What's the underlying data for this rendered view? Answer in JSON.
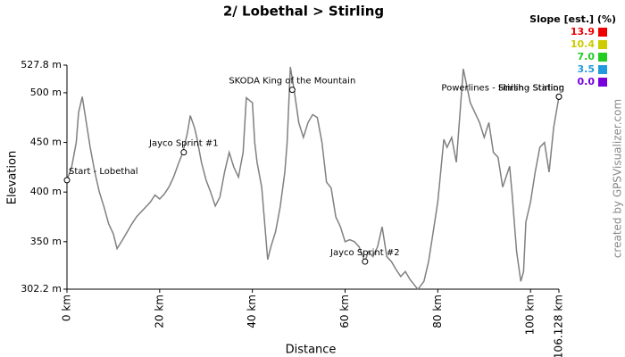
{
  "chart_data": {
    "type": "line",
    "title": "2/ Lobethal > Stirling",
    "x_label": "Distance",
    "y_label": "Elevation",
    "credit": "created by GPSVisualizer.com",
    "xlim": [
      0,
      106.128
    ],
    "ylim": [
      302.2,
      527.8
    ],
    "xticks": [
      {
        "value": 0,
        "label": "0 km"
      },
      {
        "value": 20,
        "label": "20 km"
      },
      {
        "value": 40,
        "label": "40 km"
      },
      {
        "value": 60,
        "label": "60 km"
      },
      {
        "value": 80,
        "label": "80 km"
      },
      {
        "value": 100,
        "label": "100 km"
      },
      {
        "value": 106.128,
        "label": "106.128 km"
      }
    ],
    "yticks": [
      {
        "value": 302.2,
        "label": "302.2 m"
      },
      {
        "value": 350,
        "label": "350 m"
      },
      {
        "value": 400,
        "label": "400 m"
      },
      {
        "value": 450,
        "label": "450 m"
      },
      {
        "value": 500,
        "label": "500 m"
      },
      {
        "value": 527.8,
        "label": "527.8 m"
      }
    ],
    "series": [
      {
        "name": "Elevation",
        "color": "#808080",
        "x": [
          0,
          1,
          2,
          2.5,
          3.3,
          4,
          5,
          6,
          7,
          8,
          9,
          10,
          10.8,
          12,
          13,
          14,
          15,
          16,
          17,
          18,
          19,
          20,
          21,
          22,
          23,
          24,
          25,
          26,
          26.6,
          27.5,
          28,
          29,
          30,
          31,
          32,
          33,
          34,
          35,
          36,
          37,
          38,
          38.7,
          40,
          40.5,
          41,
          42,
          43.3,
          44,
          45,
          46,
          47,
          47.5,
          48.2,
          49,
          50,
          51,
          52,
          53,
          54,
          55,
          56,
          57,
          58,
          59,
          60,
          61,
          62,
          63,
          64.3,
          65,
          66,
          67,
          68,
          69,
          70,
          71,
          72,
          73,
          74,
          75.7,
          77,
          78,
          79,
          80,
          81.3,
          82,
          83,
          84,
          85.5,
          87,
          88,
          89,
          90,
          91,
          92,
          93,
          94,
          95.5,
          96,
          97,
          97.9,
          98.5,
          99,
          100,
          101,
          102,
          103,
          104,
          105,
          106.128
        ],
        "values": [
          412,
          425,
          450,
          480,
          496,
          475,
          445,
          420,
          400,
          385,
          368,
          358,
          343,
          352,
          360,
          368,
          375,
          380,
          385,
          390,
          397,
          393,
          398,
          405,
          415,
          428,
          440,
          460,
          477,
          465,
          455,
          430,
          412,
          400,
          386,
          395,
          420,
          440,
          425,
          415,
          440,
          495,
          490,
          450,
          430,
          405,
          332,
          345,
          360,
          385,
          420,
          450,
          526,
          503,
          470,
          455,
          470,
          478,
          475,
          450,
          410,
          404,
          375,
          365,
          350,
          352,
          350,
          345,
          330,
          340,
          335,
          345,
          365,
          335,
          330,
          322,
          315,
          320,
          312,
          302,
          310,
          330,
          360,
          390,
          453,
          445,
          455,
          430,
          524,
          490,
          480,
          470,
          455,
          470,
          440,
          435,
          405,
          426,
          400,
          340,
          310,
          320,
          370,
          390,
          420,
          445,
          450,
          420,
          465,
          496
        ]
      }
    ],
    "annotations": [
      {
        "text": "Start - Lobethal",
        "x": 0,
        "y": 412
      },
      {
        "text": "Jayco Sprint #1",
        "x": 25.2,
        "y": 440
      },
      {
        "text": "SKODA King of the Mountain",
        "x": 48.6,
        "y": 503
      },
      {
        "text": "Jayco Sprint #2",
        "x": 64.3,
        "y": 330
      },
      {
        "text": "Powerlines - Stirling Station",
        "x": 106.128,
        "y": 496
      },
      {
        "text": "Finish - Stirling",
        "x": 106.128,
        "y": 496
      }
    ],
    "slope_legend": {
      "title": "Slope [est.] (%)",
      "items": [
        {
          "value": 13.9,
          "label": "13.9",
          "color": "#ee0000"
        },
        {
          "value": 10.4,
          "label": "10.4",
          "color": "#cccc00"
        },
        {
          "value": 7.0,
          "label": "7.0",
          "color": "#22cc22"
        },
        {
          "value": 3.5,
          "label": "3.5",
          "color": "#2299dd"
        },
        {
          "value": 0.0,
          "label": "0.0",
          "color": "#7700dd"
        }
      ]
    }
  }
}
